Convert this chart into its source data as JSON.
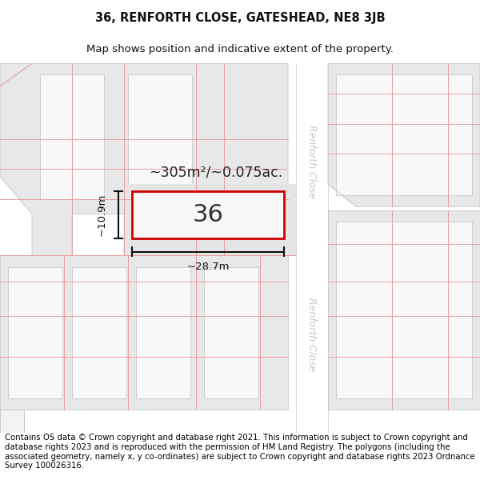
{
  "title_line1": "36, RENFORTH CLOSE, GATESHEAD, NE8 3JB",
  "title_line2": "Map shows position and indicative extent of the property.",
  "footer_text": "Contains OS data © Crown copyright and database right 2021. This information is subject to Crown copyright and database rights 2023 and is reproduced with the permission of HM Land Registry. The polygons (including the associated geometry, namely x, y co-ordinates) are subject to Crown copyright and database rights 2023 Ordnance Survey 100026316.",
  "bg_color": "#f2f2f2",
  "road_fill": "#ffffff",
  "parcel_fill": "#e8e8e8",
  "parcel_inner_fill": "#f8f8f8",
  "plot_outline_color": "#cc0000",
  "plot_fill_color": "#f8f8f8",
  "dim_color": "#111111",
  "gc": "#e8a0a0",
  "gc_gray": "#c8c8c8",
  "plot_number": "36",
  "area_label": "~305m²/~0.075ac.",
  "width_label": "~28.7m",
  "height_label": "~10.9m",
  "road_label": "Renforth Close",
  "road_label_color": "#c8c8c8"
}
